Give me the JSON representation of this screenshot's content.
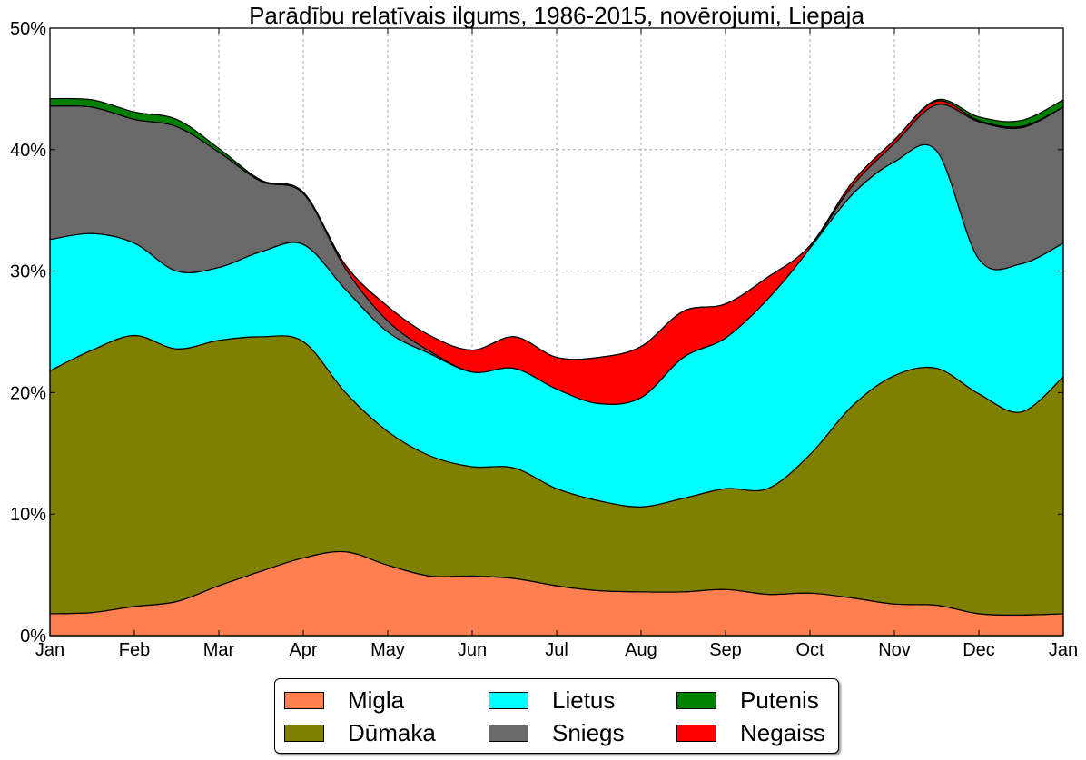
{
  "chart_data": {
    "type": "area",
    "stacked": true,
    "title": "Parādību relatīvais ilgums, 1986-2015, novērojumi, Liepaja",
    "xlabel": "",
    "ylabel": "",
    "ylim": [
      0,
      50
    ],
    "xlim": [
      0,
      12
    ],
    "grid": true,
    "yticks": [
      0,
      10,
      20,
      30,
      40,
      50
    ],
    "ytick_labels": [
      "0%",
      "10%",
      "20%",
      "30%",
      "40%",
      "50%"
    ],
    "xticks": [
      0,
      1,
      2,
      3,
      4,
      5,
      6,
      7,
      8,
      9,
      10,
      11,
      12
    ],
    "xtick_labels": [
      "Jan",
      "Feb",
      "Mar",
      "Apr",
      "May",
      "Jun",
      "Jul",
      "Aug",
      "Sep",
      "Oct",
      "Nov",
      "Dec",
      "Jan"
    ],
    "x": [
      0,
      0.5,
      1,
      1.5,
      2,
      2.5,
      3,
      3.5,
      4,
      4.5,
      5,
      5.5,
      6,
      6.5,
      7,
      7.5,
      8,
      8.5,
      9,
      9.5,
      10,
      10.5,
      11,
      11.5,
      12
    ],
    "series": [
      {
        "name": "Migla",
        "color": "#ff7f50",
        "values": [
          1.8,
          1.9,
          2.4,
          2.8,
          4.1,
          5.3,
          6.4,
          6.9,
          5.8,
          4.9,
          4.9,
          4.7,
          4.1,
          3.7,
          3.6,
          3.6,
          3.8,
          3.4,
          3.5,
          3.1,
          2.6,
          2.5,
          1.8,
          1.7,
          1.8
        ]
      },
      {
        "name": "Dūmaka",
        "color": "#808000",
        "values": [
          20.0,
          21.6,
          22.3,
          20.8,
          20.2,
          19.3,
          17.8,
          13.1,
          11.0,
          9.9,
          9.0,
          9.1,
          8.0,
          7.4,
          7.0,
          7.7,
          8.3,
          8.7,
          11.4,
          15.8,
          18.8,
          19.5,
          18.1,
          16.7,
          19.5
        ]
      },
      {
        "name": "Lietus",
        "color": "#00ffff",
        "values": [
          10.8,
          9.6,
          7.6,
          6.4,
          6.0,
          7.0,
          8.0,
          8.5,
          8.2,
          8.4,
          7.8,
          8.2,
          8.2,
          8.0,
          9.0,
          11.6,
          12.4,
          15.6,
          17.0,
          17.4,
          17.6,
          17.9,
          11.1,
          12.2,
          11.0
        ]
      },
      {
        "name": "Sniegs",
        "color": "#696969",
        "values": [
          11.0,
          10.4,
          10.2,
          11.9,
          9.5,
          5.8,
          4.2,
          1.7,
          0.9,
          0.2,
          0,
          0,
          0,
          0,
          0,
          0,
          0,
          0,
          0,
          0.7,
          1.5,
          3.8,
          11.3,
          11.2,
          11.2
        ]
      },
      {
        "name": "Negaiss",
        "color": "#ff0000",
        "values": [
          0,
          0,
          0,
          0,
          0,
          0,
          0,
          0.3,
          1.2,
          1.3,
          1.8,
          2.6,
          2.6,
          3.8,
          4.2,
          3.8,
          2.8,
          1.8,
          0.2,
          0.3,
          0.3,
          0.3,
          0.1,
          0.1,
          0
        ]
      },
      {
        "name": "Putenis",
        "color": "#008000",
        "values": [
          0.6,
          0.6,
          0.6,
          0.6,
          0.3,
          0.1,
          0.1,
          0,
          0,
          0,
          0,
          0,
          0,
          0,
          0,
          0,
          0,
          0,
          0,
          0,
          0,
          0.1,
          0.3,
          0.5,
          0.6
        ]
      }
    ],
    "legend": {
      "placement": "bottom-center, below plot",
      "columns": 3,
      "entries": [
        "Migla",
        "Dūmaka",
        "Lietus",
        "Sniegs",
        "Putenis",
        "Negaiss"
      ]
    }
  }
}
